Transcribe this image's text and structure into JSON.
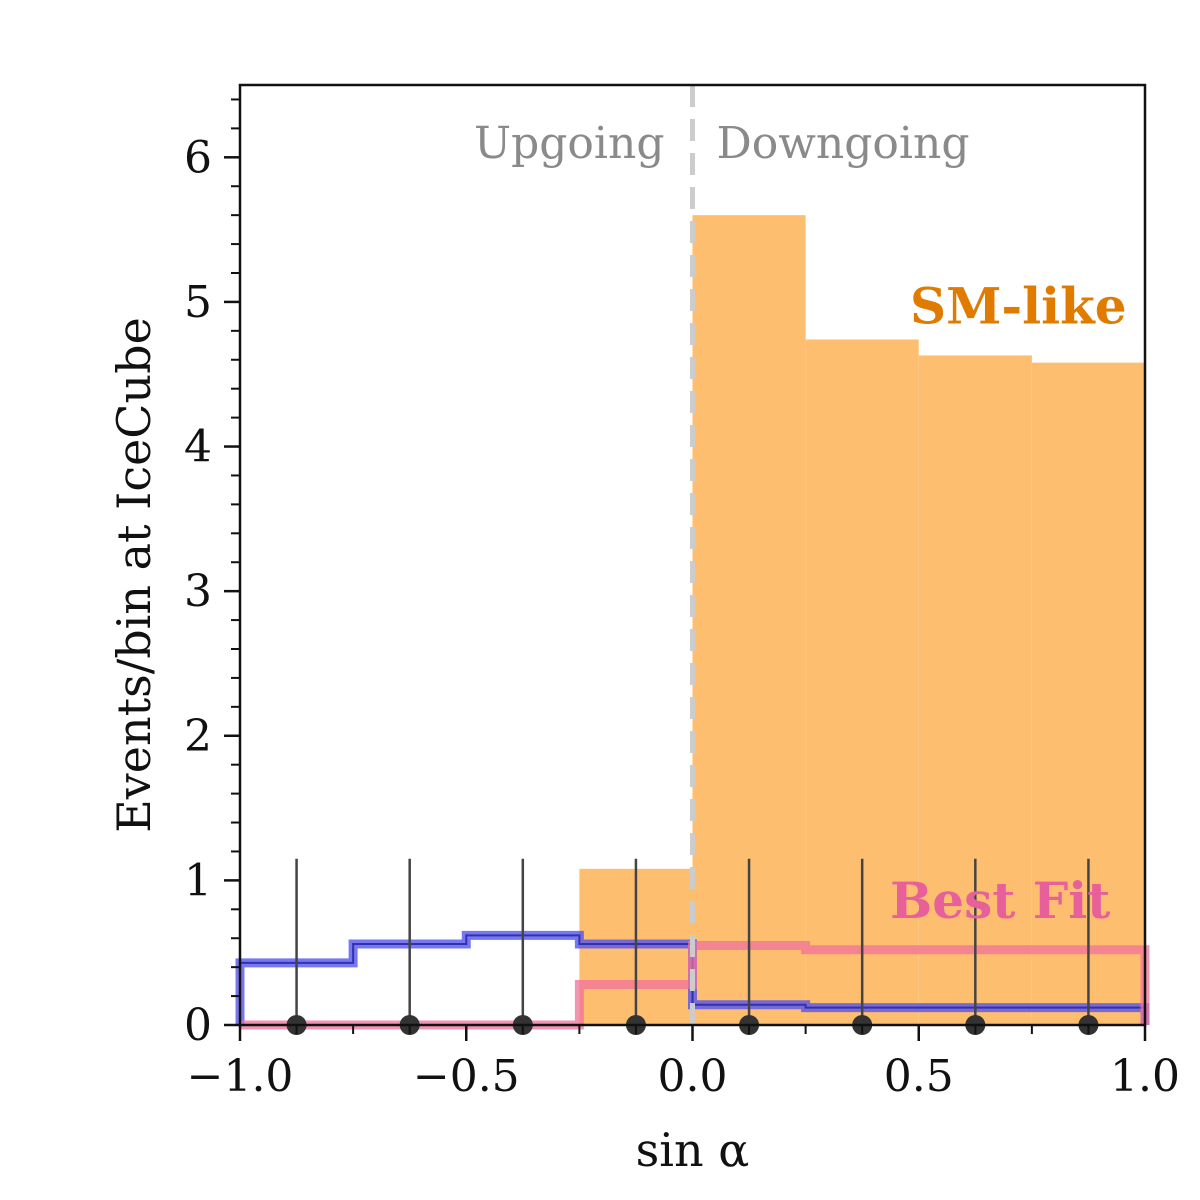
{
  "chart_data": {
    "type": "bar",
    "xlabel": "sin α",
    "ylabel": "Events/bin at IceCube",
    "xlim": [
      -1.0,
      1.0
    ],
    "ylim": [
      0,
      6.5
    ],
    "grid": false,
    "x_ticks": [
      -1.0,
      -0.5,
      0.0,
      0.5,
      1.0
    ],
    "x_tick_labels": [
      "−1.0",
      "−0.5",
      "0.0",
      "0.5",
      "1.0"
    ],
    "y_ticks": [
      0,
      1,
      2,
      3,
      4,
      5,
      6
    ],
    "y_tick_labels": [
      "0",
      "1",
      "2",
      "3",
      "4",
      "5",
      "6"
    ],
    "bin_edges": [
      -1.0,
      -0.75,
      -0.5,
      -0.25,
      0.0,
      0.25,
      0.5,
      0.75,
      1.0
    ],
    "annotations": {
      "upgoing": "Upgoing",
      "downgoing": "Downgoing",
      "divider_x": 0.0
    },
    "series": [
      {
        "name": "SM-like",
        "style": "filled",
        "color": "#fdbf6f",
        "label_color": "#e07b00",
        "values": [
          0.0,
          0.0,
          0.0,
          1.08,
          5.6,
          4.74,
          4.63,
          4.58
        ]
      },
      {
        "name": "Best Fit",
        "style": "step",
        "color": "#f0709a",
        "label_color": "#e8609a",
        "values": [
          0.0,
          0.0,
          0.0,
          0.28,
          0.55,
          0.52,
          0.52,
          0.52
        ]
      },
      {
        "name": "",
        "style": "step",
        "color": "#5555ee",
        "values": [
          0.43,
          0.56,
          0.62,
          0.56,
          0.14,
          0.12,
          0.12,
          0.12
        ]
      }
    ],
    "data_points": {
      "x": [
        -0.875,
        -0.625,
        -0.375,
        -0.125,
        0.125,
        0.375,
        0.625,
        0.875
      ],
      "y": [
        0,
        0,
        0,
        0,
        0,
        0,
        0,
        0
      ],
      "y_err_upper": [
        1.15,
        1.15,
        1.15,
        1.15,
        1.15,
        1.15,
        1.15,
        1.15
      ]
    }
  }
}
